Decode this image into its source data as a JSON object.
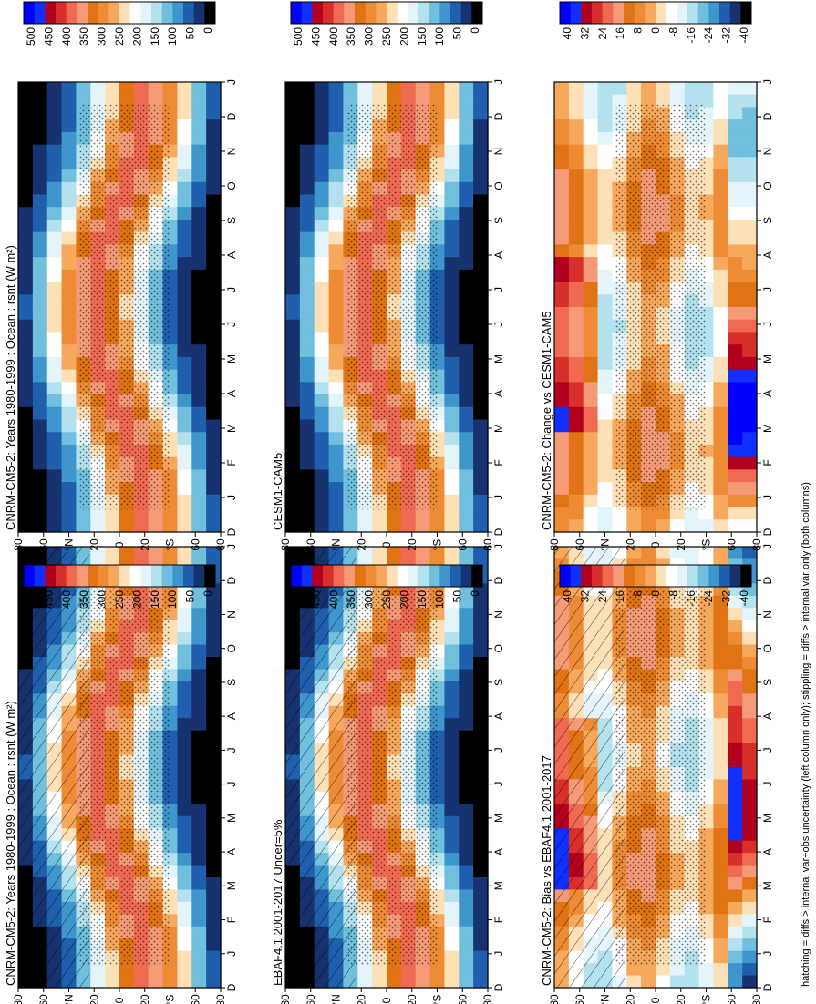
{
  "figure": {
    "footnote": "hatching = diffs > internal var+obs uncertainty (left column only); stippling = diffs > internal var only (both columns)"
  },
  "palettes": {
    "absolute": [
      "#0000ff",
      "#1030ff",
      "#b2001e",
      "#d7302a",
      "#f06a52",
      "#f59a77",
      "#e07314",
      "#ee8c36",
      "#f6a85c",
      "#fde0b6",
      "#ffffff",
      "#e3f4fa",
      "#b3e2ee",
      "#6fbfdd",
      "#3f96cc",
      "#1f5fad",
      "#16336f",
      "#000000"
    ],
    "difference": [
      "#0000ff",
      "#1030ff",
      "#b2001e",
      "#d7302a",
      "#f06a52",
      "#f59a77",
      "#e07314",
      "#ee8c36",
      "#f6a85c",
      "#fde0b6",
      "#ffffff",
      "#e3f4fa",
      "#b3e2ee",
      "#6fbfdd",
      "#3f96cc",
      "#1f5fad",
      "#16336f",
      "#000000"
    ]
  },
  "chart_data": [
    {
      "type": "heatmap",
      "id": "top-left",
      "title": "CNRM-CM5-2: Years 1980-1999 : Ocean : rsnt (W m²)",
      "x_ticks": [
        "D",
        "J",
        "F",
        "M",
        "A",
        "M",
        "J",
        "J",
        "A",
        "S",
        "O",
        "N",
        "D",
        "J"
      ],
      "y_ticks": [
        "80",
        "60",
        "°N",
        "20",
        "0",
        "20",
        "°S",
        "60",
        "80"
      ],
      "colorbar_labels": [
        "500",
        "450",
        "400",
        "350",
        "300",
        "250",
        "200",
        "150",
        "100",
        "50",
        "0"
      ],
      "units": "W m²",
      "variable": "rsnt",
      "kind": "absolute",
      "hatching": true
    },
    {
      "type": "heatmap",
      "id": "top-right",
      "title": "CNRM-CM5-2: Years 1980-1999 : Ocean : rsnt (W m²)",
      "x_ticks": [
        "D",
        "J",
        "F",
        "M",
        "A",
        "M",
        "J",
        "J",
        "A",
        "S",
        "O",
        "N",
        "D",
        "J"
      ],
      "y_ticks": [
        "80",
        "60",
        "°N",
        "20",
        "0",
        "20",
        "°S",
        "60",
        "80"
      ],
      "colorbar_labels": [
        "500",
        "450",
        "400",
        "350",
        "300",
        "250",
        "200",
        "150",
        "100",
        "50",
        "0"
      ],
      "units": "W m²",
      "variable": "rsnt",
      "kind": "absolute",
      "hatching": false
    },
    {
      "type": "heatmap",
      "id": "mid-left",
      "title": "EBAF4.1 2001-2017 Uncer=5%",
      "x_ticks": [
        "D",
        "J",
        "F",
        "M",
        "A",
        "M",
        "J",
        "J",
        "A",
        "S",
        "O",
        "N",
        "D",
        "J"
      ],
      "y_ticks": [
        "80",
        "60",
        "°N",
        "20",
        "0",
        "20",
        "°S",
        "60",
        "80"
      ],
      "colorbar_labels": [
        "500",
        "450",
        "400",
        "350",
        "300",
        "250",
        "200",
        "150",
        "100",
        "50",
        "0"
      ],
      "kind": "absolute",
      "hatching": true
    },
    {
      "type": "heatmap",
      "id": "mid-right",
      "title": "CESM1-CAM5",
      "x_ticks": [
        "D",
        "J",
        "F",
        "M",
        "A",
        "M",
        "J",
        "J",
        "A",
        "S",
        "O",
        "N",
        "D",
        "J"
      ],
      "y_ticks": [
        "80",
        "60",
        "°N",
        "20",
        "0",
        "20",
        "°S",
        "60",
        "80"
      ],
      "colorbar_labels": [
        "500",
        "450",
        "400",
        "350",
        "300",
        "250",
        "200",
        "150",
        "100",
        "50",
        "0"
      ],
      "kind": "absolute",
      "hatching": false
    },
    {
      "type": "heatmap",
      "id": "bottom-left",
      "title": "CNRM-CM5-2: Bias vs EBAF4.1 2001-2017",
      "x_ticks": [
        "D",
        "J",
        "F",
        "M",
        "A",
        "M",
        "J",
        "J",
        "A",
        "S",
        "O",
        "N",
        "D",
        "J"
      ],
      "y_ticks": [
        "80",
        "60",
        "°N",
        "20",
        "0",
        "20",
        "°S",
        "60",
        "80"
      ],
      "colorbar_labels": [
        "40",
        "32",
        "24",
        "16",
        "8",
        "0",
        "-8",
        "-16",
        "-24",
        "-32",
        "-40"
      ],
      "kind": "difference",
      "hatching": true
    },
    {
      "type": "heatmap",
      "id": "bottom-right",
      "title": "CNRM-CM5-2: Change vs CESM1-CAM5",
      "x_ticks": [
        "D",
        "J",
        "F",
        "M",
        "A",
        "M",
        "J",
        "J",
        "A",
        "S",
        "O",
        "N",
        "D",
        "J"
      ],
      "y_ticks": [
        "80",
        "60",
        "°N",
        "20",
        "0",
        "20",
        "°S",
        "60",
        "80"
      ],
      "colorbar_labels": [
        "40",
        "32",
        "24",
        "16",
        "8",
        "0",
        "-8",
        "-16",
        "-24",
        "-32",
        "-40"
      ],
      "kind": "difference",
      "hatching": false
    }
  ]
}
